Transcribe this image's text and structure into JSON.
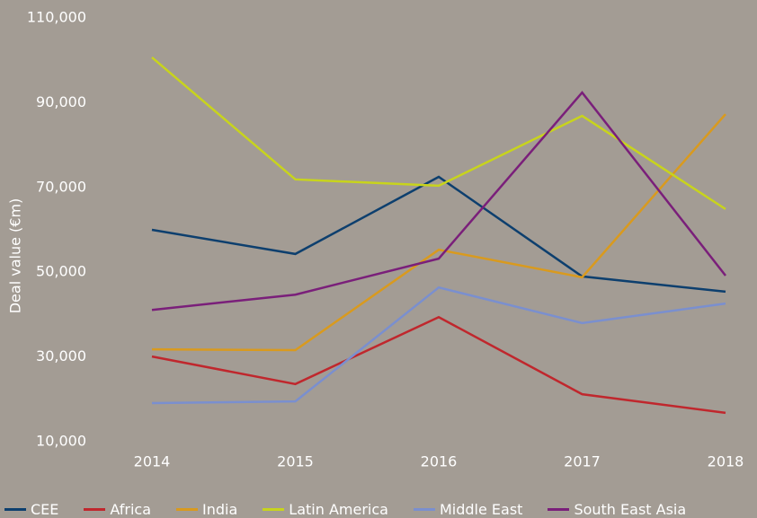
{
  "chart_data": {
    "type": "line",
    "y_label": "Deal value (€m)",
    "categories": [
      "2014",
      "2015",
      "2016",
      "2017",
      "2018"
    ],
    "series": [
      {
        "name": "CEE",
        "color": "#0d3f6e",
        "values": [
          60000,
          54300,
          72500,
          49000,
          45400
        ]
      },
      {
        "name": "Africa",
        "color": "#c0272d",
        "values": [
          30100,
          23600,
          39400,
          21200,
          16800
        ]
      },
      {
        "name": "India",
        "color": "#d99a1e",
        "values": [
          31800,
          31600,
          55300,
          48800,
          87300
        ]
      },
      {
        "name": "Latin America",
        "color": "#c8d41c",
        "values": [
          100700,
          71900,
          70400,
          86900,
          64900
        ]
      },
      {
        "name": "Middle East",
        "color": "#7a8fcf",
        "values": [
          19100,
          19500,
          46400,
          38000,
          42600
        ]
      },
      {
        "name": "South East Asia",
        "color": "#7a1f7a",
        "values": [
          41100,
          44700,
          53200,
          92400,
          49200
        ]
      }
    ],
    "ylim": [
      10000,
      110000
    ],
    "yticks": [
      {
        "value": 10000,
        "label": "10,000"
      },
      {
        "value": 30000,
        "label": "30,000"
      },
      {
        "value": 50000,
        "label": "50,000"
      },
      {
        "value": 70000,
        "label": "70,000"
      },
      {
        "value": 90000,
        "label": "90,000"
      },
      {
        "value": 110000,
        "label": "110,000"
      }
    ],
    "legend": "bottom"
  }
}
